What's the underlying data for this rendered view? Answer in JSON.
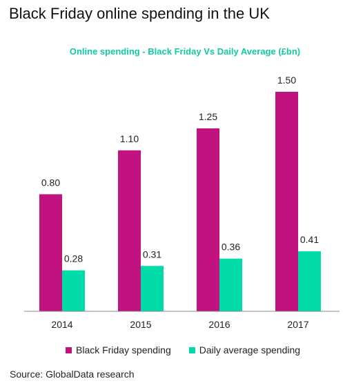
{
  "page": {
    "title": "Black Friday online spending in the UK",
    "source": "Source: GlobalData research"
  },
  "colors": {
    "black_friday": "#C0137F",
    "daily_average": "#00DBA8",
    "subtitle": "#11C9A4",
    "axis": "#8A8A8A",
    "text": "#222222"
  },
  "chart_data": {
    "type": "bar",
    "title": "Online spending - Black Friday Vs Daily Average (£bn)",
    "categories": [
      "2014",
      "2015",
      "2016",
      "2017"
    ],
    "series": [
      {
        "name": "Black Friday spending",
        "values": [
          0.8,
          1.1,
          1.25,
          1.5
        ],
        "labels": [
          "0.80",
          "1.10",
          "1.25",
          "1.50"
        ]
      },
      {
        "name": "Daily average spending",
        "values": [
          0.28,
          0.31,
          0.36,
          0.41
        ],
        "labels": [
          "0.28",
          "0.31",
          "0.36",
          "0.41"
        ]
      }
    ],
    "ylim": [
      0,
      1.65
    ],
    "grid": false,
    "legend": "bottom"
  }
}
